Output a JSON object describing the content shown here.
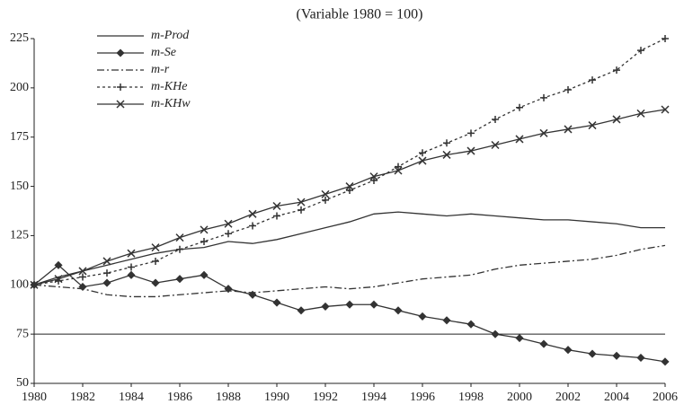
{
  "chart_data": {
    "type": "line",
    "title": "(Variable 1980 = 100)",
    "x": [
      1980,
      1981,
      1982,
      1983,
      1984,
      1985,
      1986,
      1987,
      1988,
      1989,
      1990,
      1991,
      1992,
      1993,
      1994,
      1995,
      1996,
      1997,
      1998,
      1999,
      2000,
      2001,
      2002,
      2003,
      2004,
      2005,
      2006
    ],
    "series": [
      {
        "name": "m-Prod",
        "color": "#333333",
        "dash": "",
        "marker": "none",
        "values": [
          100,
          104,
          107,
          110,
          113,
          116,
          118,
          119,
          122,
          121,
          123,
          126,
          129,
          132,
          136,
          137,
          136,
          135,
          136,
          135,
          134,
          133,
          133,
          132,
          131,
          129,
          129
        ]
      },
      {
        "name": "m-Se",
        "color": "#333333",
        "dash": "",
        "marker": "diamond",
        "values": [
          100,
          110,
          99,
          101,
          105,
          101,
          103,
          105,
          98,
          95,
          91,
          87,
          89,
          90,
          90,
          87,
          84,
          82,
          80,
          75,
          73,
          70,
          67,
          65,
          64,
          63,
          61
        ]
      },
      {
        "name": "m-r",
        "color": "#333333",
        "dash": "8,3,2,3",
        "marker": "none",
        "values": [
          100,
          99,
          98,
          95,
          94,
          94,
          95,
          96,
          97,
          96,
          97,
          98,
          99,
          98,
          99,
          101,
          103,
          104,
          105,
          108,
          110,
          111,
          112,
          113,
          115,
          118,
          120
        ]
      },
      {
        "name": "m-KHe",
        "color": "#333333",
        "dash": "3,3",
        "marker": "plus",
        "values": [
          100,
          102,
          104,
          106,
          109,
          112,
          118,
          122,
          126,
          130,
          135,
          138,
          143,
          148,
          153,
          160,
          167,
          172,
          177,
          184,
          190,
          195,
          199,
          204,
          209,
          219,
          225
        ]
      },
      {
        "name": "m-KHw",
        "color": "#333333",
        "dash": "",
        "marker": "cross",
        "values": [
          100,
          103,
          107,
          112,
          116,
          119,
          124,
          128,
          131,
          136,
          140,
          142,
          146,
          150,
          155,
          158,
          163,
          166,
          168,
          171,
          174,
          177,
          179,
          181,
          184,
          187,
          189
        ]
      }
    ],
    "xlim": [
      1980,
      2006
    ],
    "xticks": [
      1980,
      1982,
      1984,
      1986,
      1988,
      1990,
      1992,
      1994,
      1996,
      1998,
      2000,
      2002,
      2004,
      2006
    ],
    "ylim": [
      50,
      225
    ],
    "yticks": [
      50,
      75,
      100,
      125,
      150,
      175,
      200,
      225
    ],
    "x_axis_crosses": 75,
    "grid": false,
    "legend": "upper-left"
  }
}
